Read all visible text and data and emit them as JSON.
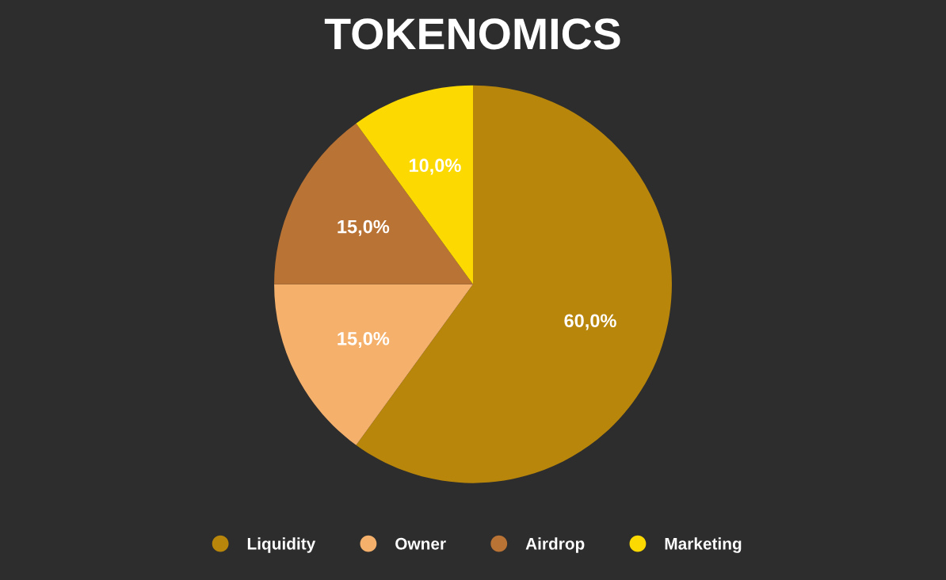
{
  "chart_data": {
    "type": "pie",
    "title": "TOKENOMICS",
    "categories": [
      "Liquidity",
      "Owner",
      "Airdrop",
      "Marketing"
    ],
    "values": [
      60,
      15,
      15,
      10
    ],
    "colors": [
      "#b8860b",
      "#f5b16c",
      "#b97335",
      "#fcd900"
    ],
    "value_labels": [
      "60,0%",
      "15,0%",
      "15,0%",
      "10,0%"
    ],
    "legend": "bottom"
  }
}
